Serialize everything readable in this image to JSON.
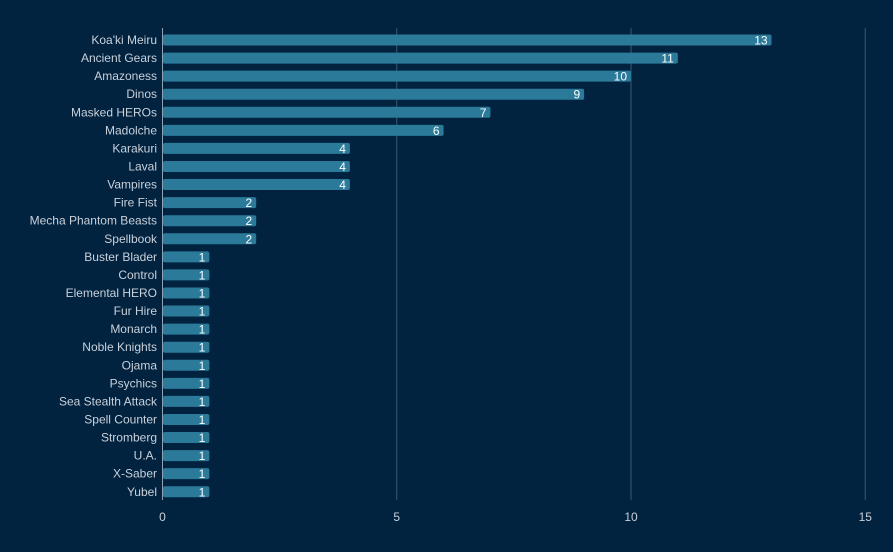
{
  "chart_data": {
    "type": "bar",
    "orientation": "horizontal",
    "categories": [
      "Koa'ki Meiru",
      "Ancient Gears",
      "Amazoness",
      "Dinos",
      "Masked HEROs",
      "Madolche",
      "Karakuri",
      "Laval",
      "Vampires",
      "Fire Fist",
      "Mecha Phantom Beasts",
      "Spellbook",
      "Buster Blader",
      "Control",
      "Elemental HERO",
      "Fur Hire",
      "Monarch",
      "Noble Knights",
      "Ojama",
      "Psychics",
      "Sea Stealth Attack",
      "Spell Counter",
      "Stromberg",
      "U.A.",
      "X-Saber",
      "Yubel"
    ],
    "values": [
      13,
      11,
      10,
      9,
      7,
      6,
      4,
      4,
      4,
      2,
      2,
      2,
      1,
      1,
      1,
      1,
      1,
      1,
      1,
      1,
      1,
      1,
      1,
      1,
      1,
      1
    ],
    "xlim": [
      0,
      15
    ],
    "xticks": [
      0,
      5,
      10,
      15
    ],
    "grid": "vertical",
    "legend": "none",
    "data_labels": "inside-end",
    "colors": {
      "background": "#012340",
      "bar": "#2b7a99",
      "grid": "#3c5770",
      "text": "#c9d1da",
      "data_label": "#ffffff"
    }
  }
}
